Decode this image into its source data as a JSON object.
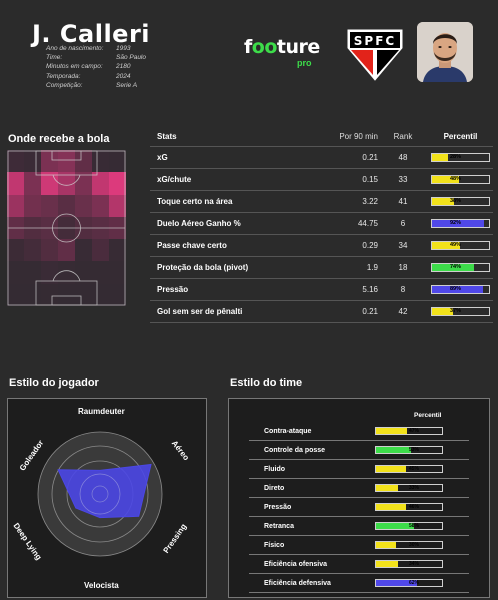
{
  "header": {
    "player_name": "J. Calleri",
    "info": [
      {
        "label": "Ano de nascimento:",
        "value": "1993"
      },
      {
        "label": "Time:",
        "value": "São Paulo"
      },
      {
        "label": "Minutos em campo:",
        "value": "2180"
      },
      {
        "label": "Temporada:",
        "value": "2024"
      },
      {
        "label": "Competição:",
        "value": "Serie A"
      }
    ],
    "brand": {
      "part1": "f",
      "part2": "oo",
      "part3": "ture",
      "sub": "pro"
    },
    "club_badge_text": "SPFC"
  },
  "heatmap": {
    "title": "Onde recebe a bola",
    "cells": [
      [
        0.15,
        0.1,
        0.55,
        0.6,
        0.4,
        0.08,
        0.05
      ],
      [
        0.85,
        0.55,
        0.9,
        0.75,
        0.55,
        0.85,
        0.95
      ],
      [
        0.7,
        0.5,
        0.45,
        0.35,
        0.45,
        0.55,
        0.8
      ],
      [
        0.4,
        0.3,
        0.35,
        0.2,
        0.3,
        0.35,
        0.4
      ],
      [
        0.12,
        0.2,
        0.3,
        0.4,
        0.08,
        0.25,
        0.06
      ],
      [
        0.04,
        0.04,
        0.1,
        0.06,
        0.04,
        0.04,
        0.04
      ],
      [
        0.03,
        0.03,
        0.04,
        0.03,
        0.03,
        0.03,
        0.03
      ]
    ]
  },
  "stats": {
    "headers": {
      "name": "Stats",
      "p90": "Por 90 min",
      "rank": "Rank",
      "pct": "Percentil"
    },
    "rows": [
      {
        "name": "xG",
        "p90": "0.21",
        "rank": "48",
        "pct": 28,
        "pct_label": "28%",
        "color": "#f2e21b"
      },
      {
        "name": "xG/chute",
        "p90": "0.15",
        "rank": "33",
        "pct": 48,
        "pct_label": "48%",
        "color": "#f2e21b"
      },
      {
        "name": "Toque certo na área",
        "p90": "3.22",
        "rank": "41",
        "pct": 38,
        "pct_label": "38%",
        "color": "#f2e21b"
      },
      {
        "name": "Duelo Aéreo Ganho %",
        "p90": "44.75",
        "rank": "6",
        "pct": 92,
        "pct_label": "92%",
        "color": "#5048e8"
      },
      {
        "name": "Passe chave certo",
        "p90": "0.29",
        "rank": "34",
        "pct": 49,
        "pct_label": "49%",
        "color": "#f2e21b"
      },
      {
        "name": "Proteção da bola (pivot)",
        "p90": "1.9",
        "rank": "18",
        "pct": 74,
        "pct_label": "74%",
        "color": "#3ddc4a"
      },
      {
        "name": "Pressão",
        "p90": "5.16",
        "rank": "8",
        "pct": 89,
        "pct_label": "89%",
        "color": "#5048e8"
      },
      {
        "name": "Gol sem ser de pênalti",
        "p90": "0.21",
        "rank": "42",
        "pct": 37,
        "pct_label": "37%",
        "color": "#f2e21b"
      }
    ]
  },
  "player_style": {
    "title": "Estilo do jogador",
    "axes": [
      "Raumdeuter",
      "Aéreo",
      "Pressing",
      "Velocista",
      "Deep Lying",
      "Goleador"
    ],
    "values": [
      0.38,
      0.95,
      0.72,
      0.38,
      0.45,
      0.78
    ]
  },
  "team_style": {
    "title": "Estilo do time",
    "header": "Percentil",
    "rows": [
      {
        "name": "Contra-ataque",
        "pct": 47,
        "pct_label": "47%",
        "color": "#f2e21b"
      },
      {
        "name": "Controle da posse",
        "pct": 53,
        "pct_label": "53%",
        "color": "#3ddc4a"
      },
      {
        "name": "Fluido",
        "pct": 45,
        "pct_label": "45%",
        "color": "#f2e21b"
      },
      {
        "name": "Direto",
        "pct": 33,
        "pct_label": "33%",
        "color": "#f2e21b"
      },
      {
        "name": "Pressão",
        "pct": 46,
        "pct_label": "46%",
        "color": "#f2e21b"
      },
      {
        "name": "Retranca",
        "pct": 58,
        "pct_label": "58%",
        "color": "#3ddc4a"
      },
      {
        "name": "Físico",
        "pct": 30,
        "pct_label": "30%",
        "color": "#f2e21b"
      },
      {
        "name": "Eficiência ofensiva",
        "pct": 34,
        "pct_label": "34%",
        "color": "#f2e21b"
      },
      {
        "name": "Eficiência defensiva",
        "pct": 62,
        "pct_label": "62%",
        "color": "#5048e8"
      }
    ]
  }
}
